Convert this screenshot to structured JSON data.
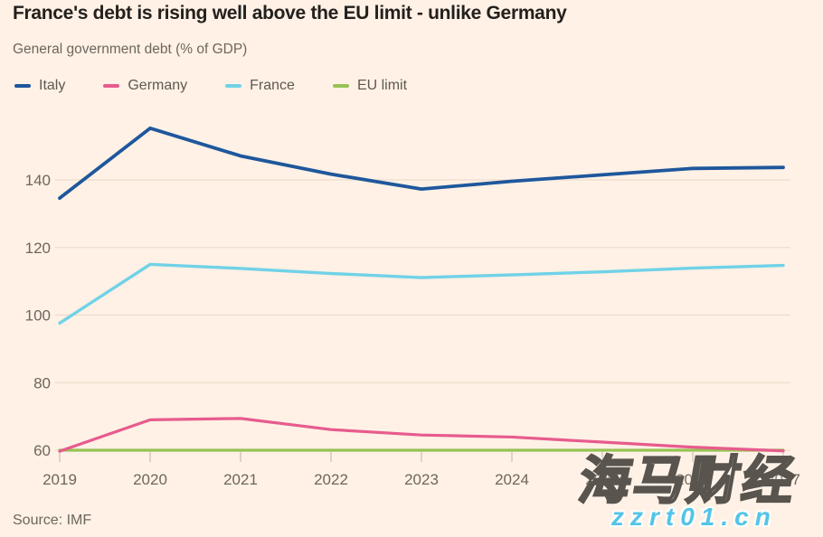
{
  "title": "France's debt is rising well above the EU limit - unlike Germany",
  "subtitle": "General government debt (% of GDP)",
  "source": "Source: IMF",
  "watermark": {
    "text": "海马财经",
    "site": "zzrt01.cn",
    "site_color": "#54c4e8"
  },
  "colors": {
    "background": "#fff1e5",
    "gridline": "#eddccd",
    "tick": "#cfc5ba",
    "axis_text": "#6d665e",
    "title_text": "#23201d"
  },
  "chart_data": {
    "type": "line",
    "title": "France's debt is rising well above the EU limit - unlike Germany",
    "subtitle": "General government debt (% of GDP)",
    "x": [
      2019,
      2020,
      2021,
      2022,
      2023,
      2024,
      2025,
      2026,
      2027
    ],
    "series": [
      {
        "name": "Italy",
        "color": "#1e579c",
        "values": [
          134.6,
          155.3,
          147.1,
          141.7,
          137.3,
          139.6,
          141.5,
          143.4,
          143.7
        ]
      },
      {
        "name": "Germany",
        "color": "#e75b8e",
        "values": [
          59.7,
          69.0,
          69.4,
          66.1,
          64.5,
          63.9,
          62.4,
          60.9,
          59.8
        ]
      },
      {
        "name": "France",
        "color": "#70d2e7",
        "values": [
          97.6,
          115.0,
          113.8,
          112.3,
          111.1,
          111.9,
          112.8,
          113.9,
          114.7
        ]
      },
      {
        "name": "EU limit",
        "color": "#96c353",
        "values": [
          60,
          60,
          60,
          60,
          60,
          60,
          60,
          60,
          60
        ]
      }
    ],
    "yticks": [
      60,
      80,
      100,
      120,
      140
    ],
    "ylim": [
      58,
      158
    ],
    "xlabel": "",
    "ylabel": "% of GDP",
    "grid": "horizontal",
    "legend_position": "top"
  }
}
